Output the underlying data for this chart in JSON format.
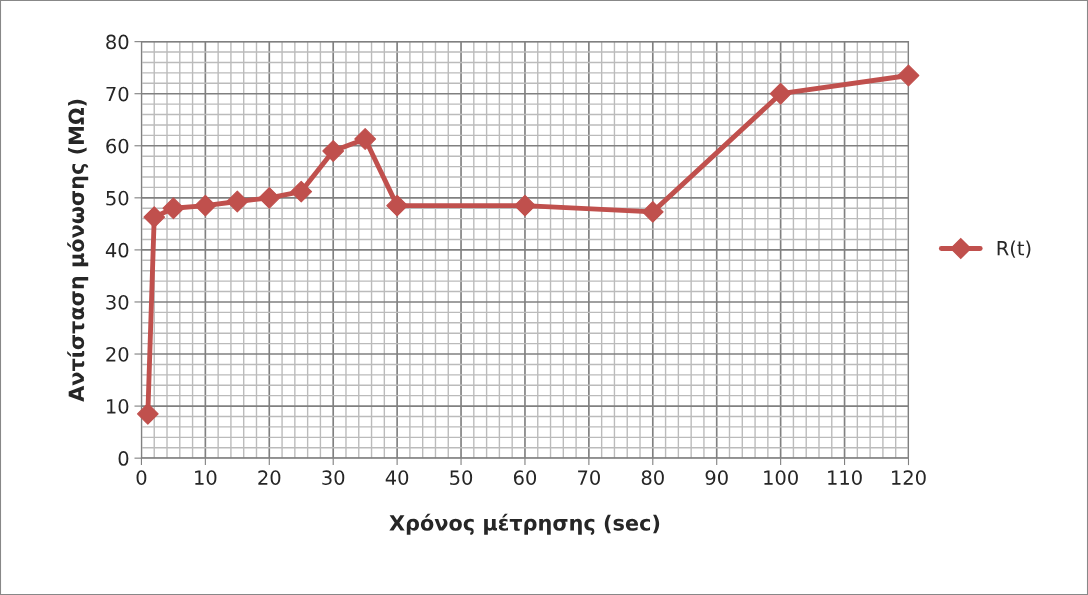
{
  "chart_data": {
    "type": "line",
    "xlabel": "Χρόνος μέτρησης (sec)",
    "ylabel": "Αντίσταση μόνωσης (MΩ)",
    "x": [
      1,
      2,
      5,
      10,
      15,
      20,
      25,
      30,
      35,
      40,
      60,
      80,
      100,
      120
    ],
    "series": [
      {
        "name": "R(t)",
        "color": "#c0504d",
        "values": [
          8.5,
          46.3,
          48,
          48.5,
          49.3,
          50,
          51.2,
          59,
          61.3,
          48.5,
          48.5,
          47.3,
          70,
          73.5
        ]
      }
    ],
    "xlim": [
      0,
      120
    ],
    "xticks": [
      0,
      10,
      20,
      30,
      40,
      50,
      60,
      70,
      80,
      90,
      100,
      110,
      120
    ],
    "ylim": [
      0,
      80
    ],
    "yticks": [
      0,
      10,
      20,
      30,
      40,
      50,
      60,
      70,
      80
    ],
    "grid": true,
    "legend": "right",
    "marker": "diamond",
    "line_style": "solid"
  }
}
